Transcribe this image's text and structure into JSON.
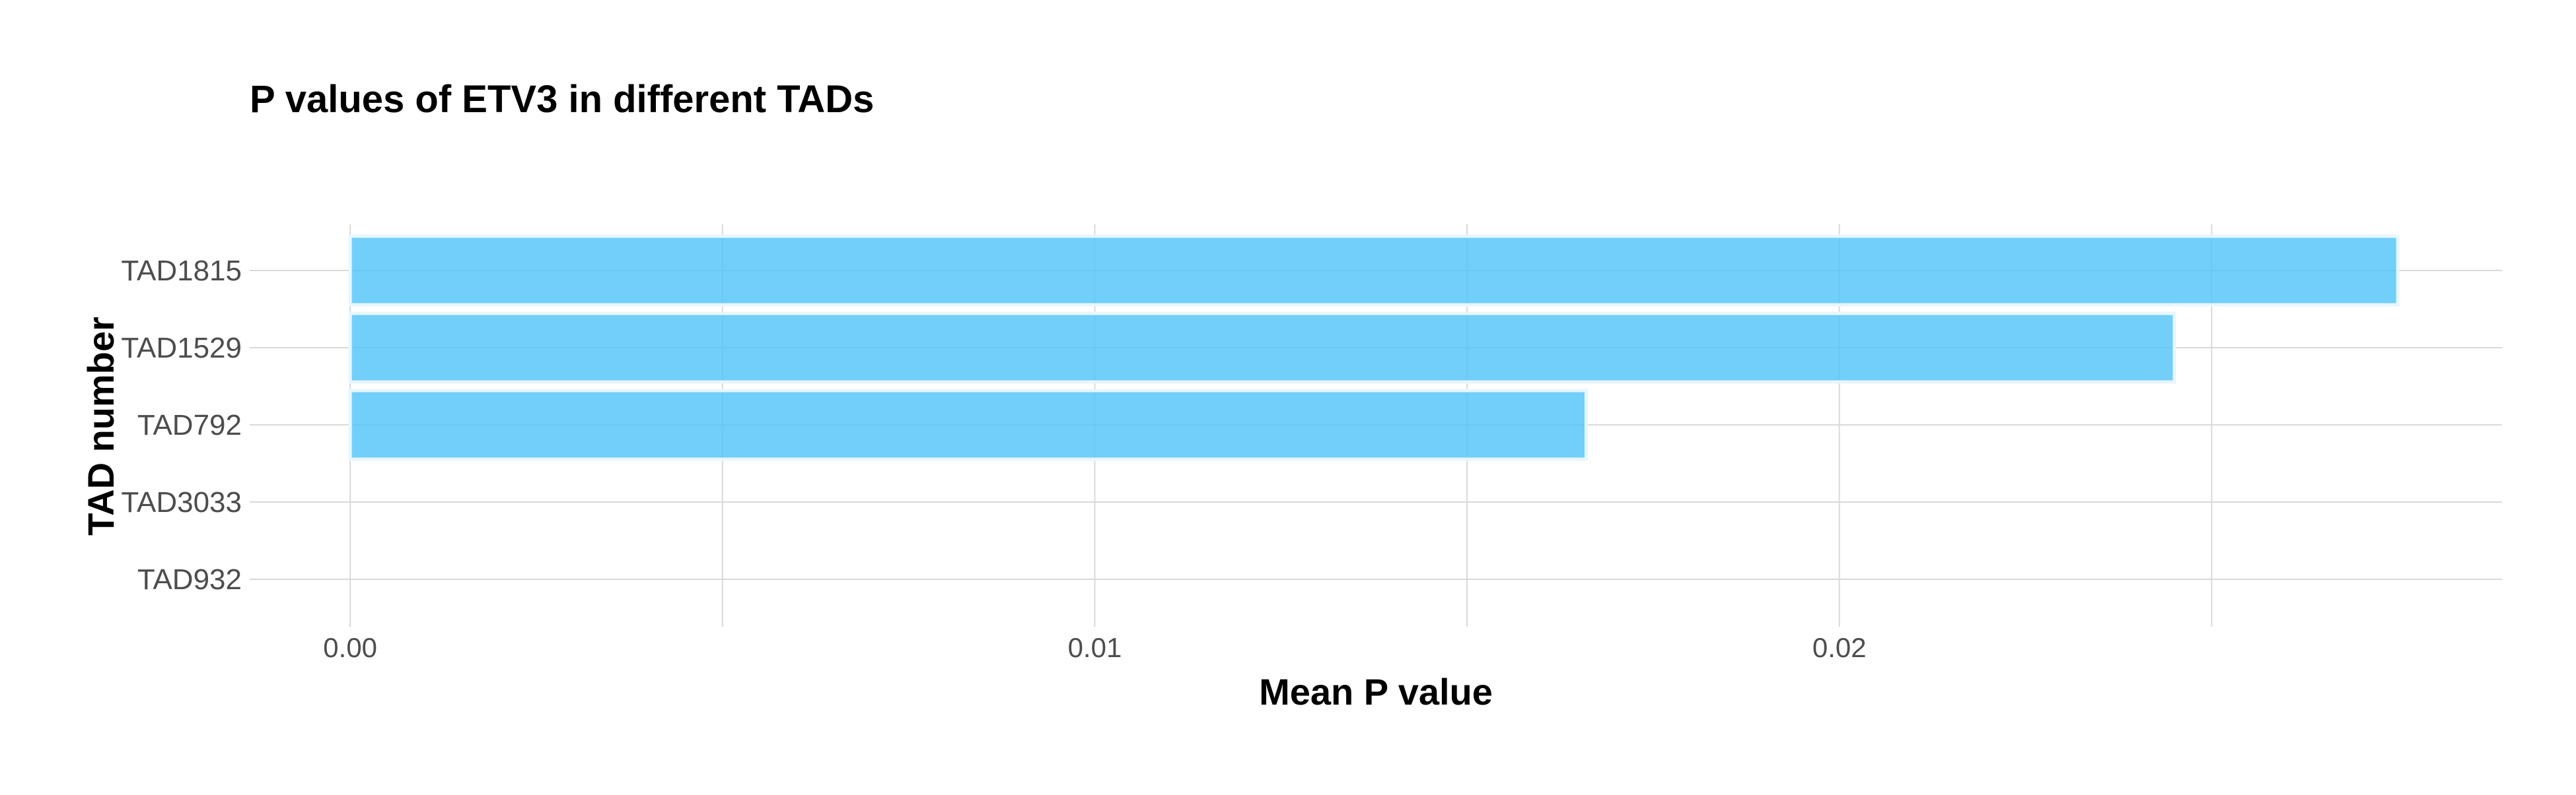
{
  "chart_data": {
    "type": "bar",
    "orientation": "horizontal",
    "title": "P values of ETV3 in different TADs",
    "xlabel": "Mean P value",
    "ylabel": "TAD number",
    "categories": [
      "TAD1815",
      "TAD1529",
      "TAD792",
      "TAD3033",
      "TAD932"
    ],
    "values": [
      0.0275,
      0.0245,
      0.0166,
      0.0,
      0.0
    ],
    "xlim": [
      -0.00135,
      0.0289
    ],
    "xticks": [
      0.0,
      0.01,
      0.02
    ],
    "xtick_labels": [
      "0.00",
      "0.01",
      "0.02"
    ],
    "grid": true,
    "legend": "none",
    "colors": {
      "bar_fill": "#4fc3f7",
      "bar_stroke": "#e8f6fd",
      "grid": "#d9d9d9",
      "text": "#000000",
      "tick_text": "#4d4d4d"
    }
  }
}
